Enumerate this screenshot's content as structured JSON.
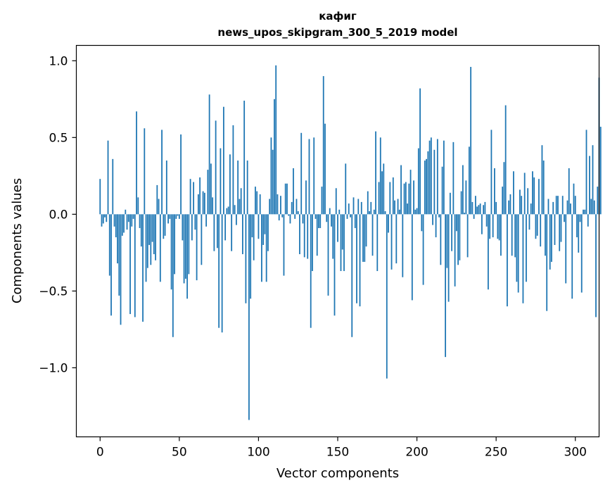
{
  "chart_data": {
    "type": "bar",
    "title_line1": "кафиг",
    "title_line2": "news_upos_skipgram_300_5_2019 model",
    "xlabel": "Vector components",
    "ylabel": "Components values",
    "xlim": [
      -15,
      315
    ],
    "ylim": [
      -1.45,
      1.1
    ],
    "xticks": [
      0,
      50,
      100,
      150,
      200,
      250,
      300
    ],
    "yticks": [
      1.0,
      0.5,
      0.0,
      -0.5,
      -1.0
    ],
    "ytick_labels": [
      "1.0",
      "0.5",
      "0.0",
      "−0.5",
      "−1.0"
    ],
    "color": "#1f77b4",
    "values": [
      0.23,
      -0.08,
      -0.06,
      -0.02,
      -0.05,
      0.48,
      -0.4,
      -0.66,
      0.36,
      -0.08,
      -0.15,
      -0.32,
      -0.53,
      -0.72,
      -0.14,
      -0.12,
      0.03,
      -0.1,
      -0.05,
      -0.65,
      -0.08,
      -0.03,
      -0.67,
      0.67,
      0.11,
      -0.09,
      -0.21,
      -0.7,
      0.56,
      -0.44,
      -0.35,
      -0.2,
      -0.33,
      -0.18,
      -0.26,
      -0.3,
      0.19,
      0.1,
      -0.44,
      0.55,
      -0.16,
      -0.14,
      0.35,
      -0.06,
      -0.03,
      -0.49,
      -0.8,
      -0.39,
      -0.03,
      -0.01,
      -0.03,
      0.52,
      -0.17,
      -0.45,
      -0.42,
      -0.55,
      -0.39,
      0.23,
      -0.17,
      0.21,
      -0.1,
      -0.43,
      0.13,
      0.24,
      -0.33,
      0.15,
      0.14,
      -0.08,
      0.29,
      0.78,
      0.33,
      0.11,
      -0.24,
      0.61,
      -0.22,
      -0.74,
      0.43,
      -0.77,
      0.7,
      -0.17,
      0.04,
      0.05,
      0.39,
      -0.24,
      0.58,
      0.06,
      -0.07,
      0.35,
      0.1,
      0.17,
      -0.26,
      0.74,
      -0.58,
      0.35,
      -1.34,
      -0.55,
      -0.15,
      -0.3,
      0.18,
      0.15,
      -0.16,
      0.13,
      -0.44,
      -0.2,
      -0.13,
      -0.44,
      -0.24,
      0.1,
      0.5,
      0.42,
      0.75,
      0.97,
      0.13,
      -0.04,
      0.12,
      -0.02,
      -0.4,
      0.2,
      0.2,
      -0.01,
      -0.06,
      0.08,
      0.3,
      -0.03,
      0.1,
      0.02,
      -0.26,
      0.53,
      -0.06,
      -0.28,
      0.22,
      -0.29,
      0.49,
      -0.74,
      -0.37,
      0.5,
      -0.03,
      -0.27,
      -0.09,
      -0.09,
      0.18,
      0.9,
      0.59,
      -0.05,
      -0.53,
      0.04,
      -0.08,
      -0.29,
      -0.66,
      0.17,
      -0.18,
      0.03,
      -0.37,
      -0.23,
      -0.37,
      0.33,
      -0.03,
      0.07,
      -0.02,
      -0.8,
      0.11,
      -0.09,
      -0.58,
      0.1,
      -0.6,
      0.08,
      -0.31,
      -0.31,
      -0.21,
      0.15,
      0.02,
      0.08,
      -0.27,
      0.03,
      0.54,
      -0.37,
      0.21,
      0.5,
      0.28,
      0.33,
      0.02,
      -1.07,
      -0.12,
      0.21,
      -0.36,
      0.24,
      0.09,
      -0.32,
      0.1,
      0.03,
      0.32,
      -0.41,
      0.2,
      0.21,
      0.07,
      0.2,
      0.29,
      -0.56,
      0.22,
      0.03,
      0.04,
      0.43,
      0.82,
      -0.11,
      -0.46,
      0.35,
      0.36,
      0.41,
      0.48,
      0.5,
      -0.07,
      0.42,
      -0.15,
      0.49,
      -0.02,
      -0.33,
      0.31,
      0.48,
      -0.93,
      -0.35,
      -0.57,
      0.14,
      -0.24,
      0.47,
      -0.47,
      -0.11,
      -0.33,
      -0.3,
      0.15,
      0.32,
      0.01,
      0.22,
      -0.28,
      0.44,
      0.96,
      0.08,
      -0.03,
      0.12,
      0.05,
      0.06,
      0.07,
      -0.13,
      0.06,
      0.08,
      -0.08,
      -0.49,
      -0.16,
      0.55,
      -0.15,
      0.3,
      0.08,
      -0.16,
      -0.17,
      -0.27,
      0.18,
      0.34,
      0.71,
      -0.6,
      0.09,
      0.13,
      -0.27,
      0.28,
      -0.28,
      -0.44,
      -0.51,
      0.16,
      0.12,
      -0.58,
      0.27,
      -0.44,
      0.17,
      -0.1,
      0.07,
      0.28,
      0.24,
      -0.16,
      -0.14,
      0.23,
      -0.21,
      0.45,
      0.35,
      -0.27,
      -0.63,
      0.1,
      -0.36,
      -0.31,
      0.08,
      -0.2,
      0.12,
      0.12,
      -0.24,
      -0.18,
      0.12,
      -0.05,
      -0.45,
      0.09,
      0.3,
      0.07,
      -0.55,
      0.2,
      0.12,
      -0.15,
      -0.25,
      -0.05,
      -0.51,
      0.03,
      0.03,
      0.55,
      -0.08,
      0.38,
      0.1,
      0.45,
      0.09,
      -0.67,
      0.18,
      0.89,
      0.57
    ]
  }
}
